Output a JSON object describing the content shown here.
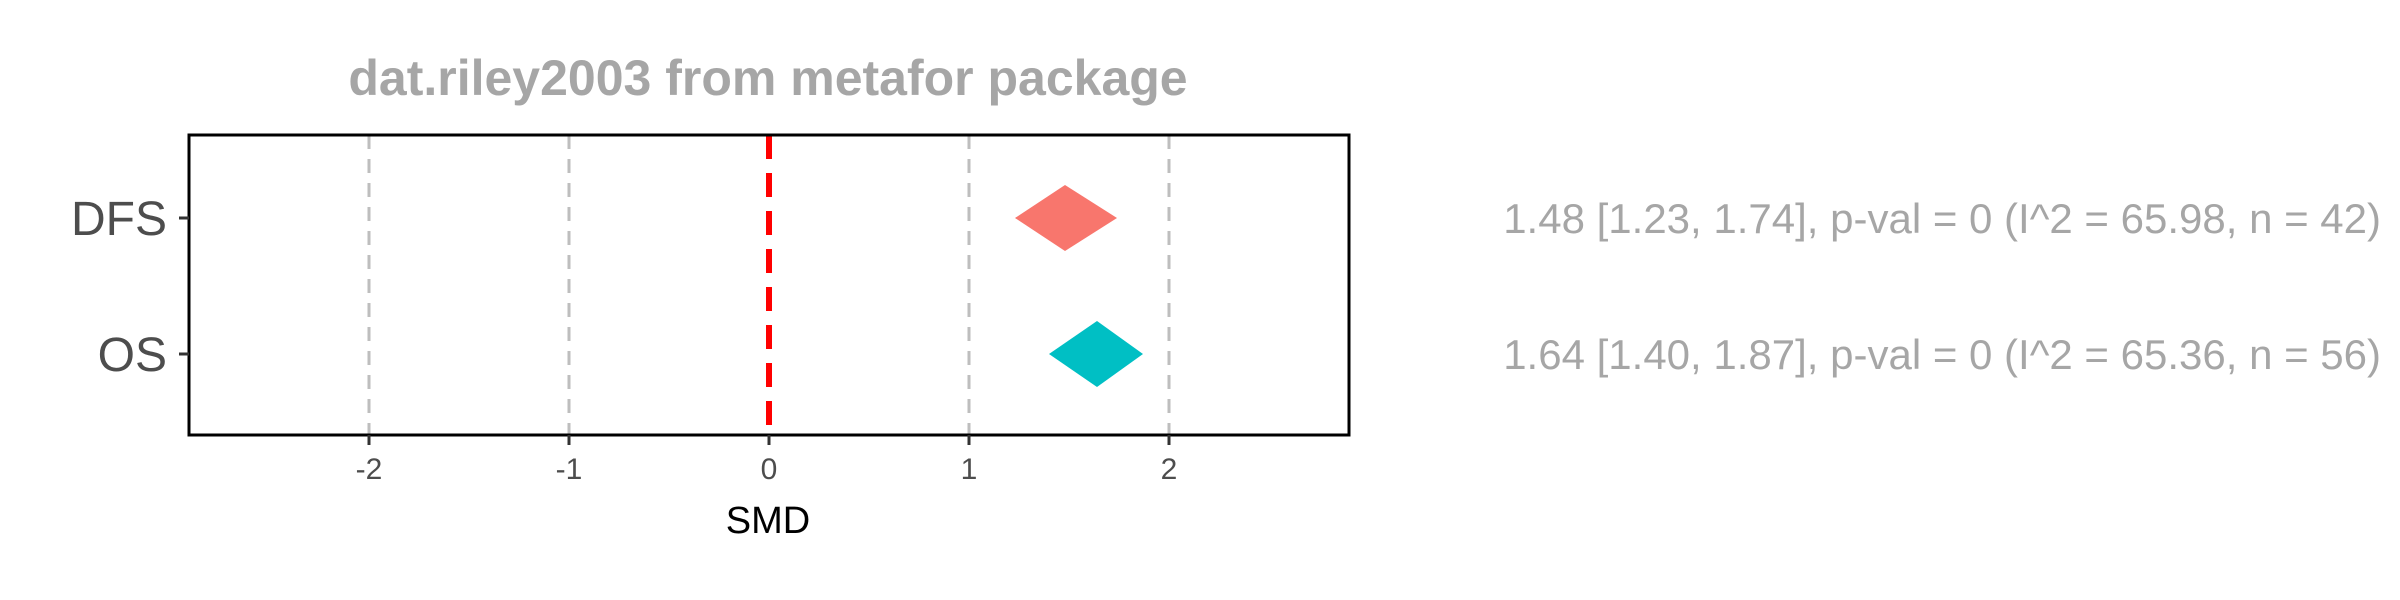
{
  "chart_data": {
    "type": "forest",
    "title": "dat.riley2003 from metafor package",
    "xlabel": "SMD",
    "xlim": [
      -2.9,
      2.9
    ],
    "xticks": [
      -2,
      -1,
      0,
      1,
      2
    ],
    "xtick_labels": [
      "-2",
      "-1",
      "0",
      "1",
      "2"
    ],
    "reference_line": 0,
    "reference_color": "#ff0000",
    "grid_color": "#bebebe",
    "rows": [
      {
        "label": "DFS",
        "estimate": 1.48,
        "ci_low": 1.23,
        "ci_high": 1.74,
        "color": "#f8766d",
        "annotation": "1.48 [1.23, 1.74], p-val = 0 (I^2 = 65.98, n = 42)"
      },
      {
        "label": "OS",
        "estimate": 1.64,
        "ci_low": 1.4,
        "ci_high": 1.87,
        "color": "#00bfc4",
        "annotation": "1.64 [1.40, 1.87], p-val = 0 (I^2 = 65.36, n = 56)"
      }
    ]
  }
}
